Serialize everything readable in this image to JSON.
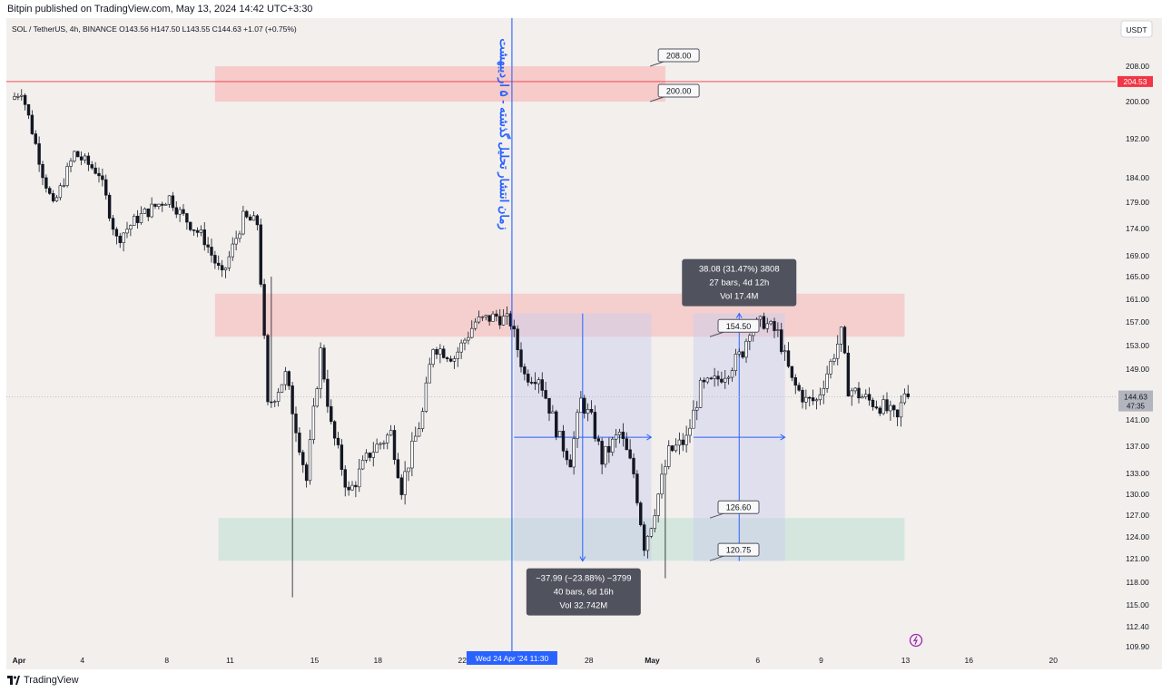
{
  "header": {
    "published": "Bitpin published on TradingView.com, May 13, 2024 14:42 UTC+3:30"
  },
  "chart_data": {
    "type": "candlestick",
    "symbol_line": "SOL / TetherUS, 4h, BINANCE O143.56 H147.50 L143.55 C144.63 +1.07 (+0.75%)",
    "currency_button": "USDT",
    "y_ticks": [
      208.0,
      200.0,
      192.0,
      184.0,
      179.0,
      174.0,
      169.0,
      165.0,
      161.0,
      157.0,
      153.0,
      149.0,
      145.0,
      141.0,
      137.0,
      133.0,
      130.0,
      127.0,
      124.0,
      121.0,
      118.0,
      115.0,
      112.4,
      109.9
    ],
    "y_tick_labels": [
      "208.00",
      "200.00",
      "192.00",
      "184.00",
      "179.00",
      "174.00",
      "169.00",
      "165.00",
      "161.00",
      "157.00",
      "153.00",
      "149.00",
      "",
      "141.00",
      "137.00",
      "133.00",
      "130.00",
      "127.00",
      "124.00",
      "121.00",
      "118.00",
      "115.00",
      "112.40",
      "109.90"
    ],
    "x_ticks": [
      {
        "label": "Apr",
        "bar": 0,
        "bold": true
      },
      {
        "label": "4",
        "bar": 18
      },
      {
        "label": "8",
        "bar": 42
      },
      {
        "label": "11",
        "bar": 60
      },
      {
        "label": "15",
        "bar": 84
      },
      {
        "label": "18",
        "bar": 102
      },
      {
        "label": "22",
        "bar": 126
      },
      {
        "label": "28",
        "bar": 162
      },
      {
        "label": "May",
        "bar": 180,
        "bold": true
      },
      {
        "label": "6",
        "bar": 210
      },
      {
        "label": "9",
        "bar": 228
      },
      {
        "label": "13",
        "bar": 252
      },
      {
        "label": "16",
        "bar": 270
      },
      {
        "label": "20",
        "bar": 294
      }
    ],
    "last_price": {
      "value": 144.63,
      "label": "144.63",
      "countdown": "47:35"
    },
    "horizontal_line": {
      "value": 204.53,
      "label": "204.53",
      "color": "#f23645"
    },
    "vertical_line": {
      "bar": 141.4,
      "label": "Wed 24 Apr '24   11:30",
      "color": "#2962ff"
    },
    "vertical_annotation": "زمان انتشار تحلیل گذشته - ۵ اردیبهشت",
    "zones": [
      {
        "name": "upper-resistance",
        "bar_from": 57,
        "bar_to": 185,
        "from": 200.0,
        "to": 208.0,
        "color": "#f7c4c4"
      },
      {
        "name": "resistance",
        "bar_from": 57,
        "bar_to": 253,
        "from": 154.5,
        "to": 162.0,
        "color": "#f5c9c9"
      },
      {
        "name": "support",
        "bar_from": 58,
        "bar_to": 253,
        "from": 120.75,
        "to": 126.6,
        "color": "#cfe4da"
      }
    ],
    "measures": [
      {
        "name": "down-measure",
        "bar_from": 142,
        "bar_to": 181,
        "from": 158.5,
        "to": 120.7,
        "text": [
          "−37.99 (−23.88%) −3799",
          "40 bars, 6d 16h",
          "Vol 32.742M"
        ]
      },
      {
        "name": "up-measure",
        "bar_from": 193,
        "bar_to": 219,
        "from": 120.7,
        "to": 158.5,
        "text": [
          "38.08 (31.47%) 3808",
          "27 bars, 4d 12h",
          "Vol 17.4M"
        ]
      }
    ],
    "price_callouts": [
      {
        "label": "208.00",
        "value": 208.0,
        "anchor_bar": 175
      },
      {
        "label": "200.00",
        "value": 200.0,
        "anchor_bar": 175
      },
      {
        "label": "154.50",
        "value": 154.5,
        "anchor_bar": 192
      },
      {
        "label": "126.60",
        "value": 126.6,
        "anchor_bar": 192
      },
      {
        "label": "120.75",
        "value": 120.75,
        "anchor_bar": 192
      }
    ],
    "footer_brand": "TradingView",
    "colors": {
      "up": "#ffffff",
      "down": "#131722",
      "wick": "#131722",
      "bg": "#f2efec"
    },
    "path_seed": 7,
    "path_points": [
      [
        0,
        200.5
      ],
      [
        3,
        202.5
      ],
      [
        9,
        185
      ],
      [
        12,
        178
      ],
      [
        18,
        189
      ],
      [
        25,
        185
      ],
      [
        30,
        172
      ],
      [
        36,
        176
      ],
      [
        45,
        180
      ],
      [
        48,
        177
      ],
      [
        55,
        172
      ],
      [
        60,
        165
      ],
      [
        66,
        176
      ],
      [
        70,
        175
      ],
      [
        73,
        143
      ],
      [
        78,
        148
      ],
      [
        84,
        132
      ],
      [
        88,
        152
      ],
      [
        91,
        140
      ],
      [
        96,
        130
      ],
      [
        102,
        136
      ],
      [
        108,
        139
      ],
      [
        111,
        131
      ],
      [
        117,
        142
      ],
      [
        120,
        153
      ],
      [
        126,
        151
      ],
      [
        132,
        157
      ],
      [
        138,
        158
      ],
      [
        142,
        157
      ],
      [
        146,
        148
      ],
      [
        150,
        148
      ],
      [
        156,
        138
      ],
      [
        159,
        135
      ],
      [
        162,
        144
      ],
      [
        165,
        141
      ],
      [
        168,
        135
      ],
      [
        173,
        139
      ],
      [
        177,
        133
      ],
      [
        180,
        123
      ],
      [
        182,
        126
      ],
      [
        184,
        130
      ],
      [
        187,
        136
      ],
      [
        192,
        138
      ],
      [
        196,
        146
      ],
      [
        200,
        147
      ],
      [
        204,
        149
      ],
      [
        208,
        152
      ],
      [
        210,
        156
      ],
      [
        214,
        157
      ],
      [
        218,
        155
      ],
      [
        222,
        147
      ],
      [
        226,
        144
      ],
      [
        229,
        144
      ],
      [
        233,
        150
      ],
      [
        236,
        155
      ],
      [
        238,
        146
      ],
      [
        244,
        144
      ],
      [
        248,
        143
      ],
      [
        252,
        141
      ],
      [
        254,
        145.5
      ],
      [
        254.5,
        144.6
      ]
    ]
  }
}
